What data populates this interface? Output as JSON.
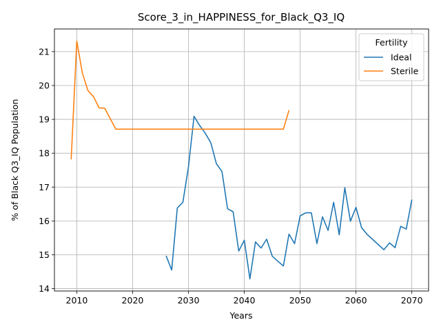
{
  "chart_data": {
    "type": "line",
    "title": "Score_3_in_HAPPINESS_for_Black_Q3_IQ",
    "xlabel": "Years",
    "ylabel": "% of Black Q3_IQ Population",
    "xlim": [
      2006,
      2073
    ],
    "ylim": [
      13.93,
      21.67
    ],
    "xticks": [
      2010,
      2020,
      2030,
      2040,
      2050,
      2060,
      2070
    ],
    "yticks": [
      14,
      15,
      16,
      17,
      18,
      19,
      20,
      21
    ],
    "grid": true,
    "legend": {
      "title": "Fertility",
      "placement": "top-right"
    },
    "series": [
      {
        "name": "Ideal",
        "color": "#1f77b4",
        "x": [
          2026,
          2027,
          2028,
          2029,
          2030,
          2031,
          2032,
          2033,
          2034,
          2035,
          2036,
          2037,
          2038,
          2039,
          2040,
          2041,
          2042,
          2043,
          2044,
          2045,
          2046,
          2047,
          2048,
          2049,
          2050,
          2051,
          2052,
          2053,
          2054,
          2055,
          2056,
          2057,
          2058,
          2059,
          2060,
          2061,
          2062,
          2063,
          2064,
          2065,
          2066,
          2067,
          2068,
          2069,
          2070
        ],
        "y": [
          14.97,
          14.55,
          16.38,
          16.55,
          17.6,
          19.09,
          18.82,
          18.59,
          18.31,
          17.69,
          17.46,
          16.36,
          16.27,
          15.11,
          15.43,
          14.29,
          15.38,
          15.2,
          15.46,
          14.96,
          14.81,
          14.67,
          15.61,
          15.33,
          16.15,
          16.24,
          16.24,
          15.33,
          16.12,
          15.72,
          16.55,
          15.59,
          16.98,
          15.99,
          16.4,
          15.8,
          15.6,
          15.45,
          15.3,
          15.15,
          15.35,
          15.21,
          15.84,
          15.76,
          16.63
        ]
      },
      {
        "name": "Sterile",
        "color": "#ff7f0e",
        "x": [
          2009,
          2010,
          2011,
          2012,
          2013,
          2014,
          2015,
          2016,
          2017,
          2018,
          2019,
          2020,
          2021,
          2022,
          2023,
          2024,
          2025,
          2026,
          2027,
          2028,
          2029,
          2030,
          2031,
          2032,
          2033,
          2034,
          2035,
          2036,
          2037,
          2038,
          2039,
          2040,
          2041,
          2042,
          2043,
          2044,
          2045,
          2046,
          2047,
          2048
        ],
        "y": [
          17.82,
          21.31,
          20.37,
          19.85,
          19.67,
          19.34,
          19.33,
          19.02,
          18.71,
          18.71,
          18.71,
          18.71,
          18.71,
          18.71,
          18.71,
          18.71,
          18.71,
          18.71,
          18.71,
          18.71,
          18.71,
          18.71,
          18.71,
          18.71,
          18.71,
          18.71,
          18.71,
          18.71,
          18.71,
          18.71,
          18.71,
          18.71,
          18.71,
          18.71,
          18.71,
          18.71,
          18.71,
          18.71,
          18.71,
          19.27
        ]
      }
    ]
  }
}
